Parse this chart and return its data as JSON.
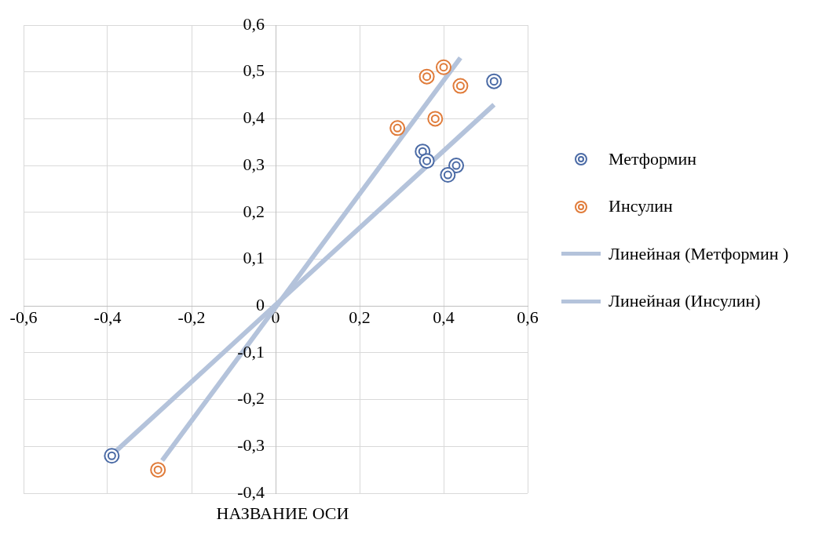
{
  "chart_data": {
    "type": "scatter",
    "xlabel": "НАЗВАНИЕ ОСИ",
    "series": [
      {
        "name": "Метформин",
        "type": "scatter",
        "color": "#4a6aa5",
        "x": [
          -0.39,
          0.35,
          0.36,
          0.43,
          0.41,
          0.52
        ],
        "values": [
          -0.32,
          0.33,
          0.31,
          0.3,
          0.28,
          0.48
        ]
      },
      {
        "name": "Инсулин",
        "type": "scatter",
        "color": "#e07b39",
        "x": [
          -0.28,
          0.29,
          0.36,
          0.4,
          0.38,
          0.44
        ],
        "values": [
          -0.35,
          0.38,
          0.49,
          0.51,
          0.4,
          0.47
        ]
      },
      {
        "name": "Линейная (Метформин )",
        "type": "line",
        "marker": "none",
        "color": "#b4c3db",
        "x": [
          -0.38,
          0.52
        ],
        "values": [
          -0.31,
          0.43
        ]
      },
      {
        "name": "Линейная (Инсулин)",
        "type": "line",
        "marker": "none",
        "color": "#b4c3db",
        "x": [
          -0.27,
          0.44
        ],
        "values": [
          -0.33,
          0.53
        ]
      }
    ],
    "xlim": [
      -0.6,
      0.6
    ],
    "xticks": [
      {
        "value": -0.6,
        "label": "-0,6"
      },
      {
        "value": -0.4,
        "label": "-0,4"
      },
      {
        "value": -0.2,
        "label": "-0,2"
      },
      {
        "value": 0,
        "label": "0"
      },
      {
        "value": 0.2,
        "label": "0,2"
      },
      {
        "value": 0.4,
        "label": "0,4"
      },
      {
        "value": 0.6,
        "label": "0,6"
      }
    ],
    "ylim": [
      -0.4,
      0.6
    ],
    "yticks": [
      {
        "value": -0.4,
        "label": "-0,4"
      },
      {
        "value": -0.3,
        "label": "-0,3"
      },
      {
        "value": -0.2,
        "label": "-0,2"
      },
      {
        "value": -0.1,
        "label": "-0,1"
      },
      {
        "value": 0,
        "label": "0"
      },
      {
        "value": 0.1,
        "label": "0,1"
      },
      {
        "value": 0.2,
        "label": "0,2"
      },
      {
        "value": 0.3,
        "label": "0,3"
      },
      {
        "value": 0.4,
        "label": "0,4"
      },
      {
        "value": 0.5,
        "label": "0,5"
      },
      {
        "value": 0.6,
        "label": "0,6"
      }
    ],
    "grid": true,
    "legend": "right",
    "marker": "circle"
  }
}
